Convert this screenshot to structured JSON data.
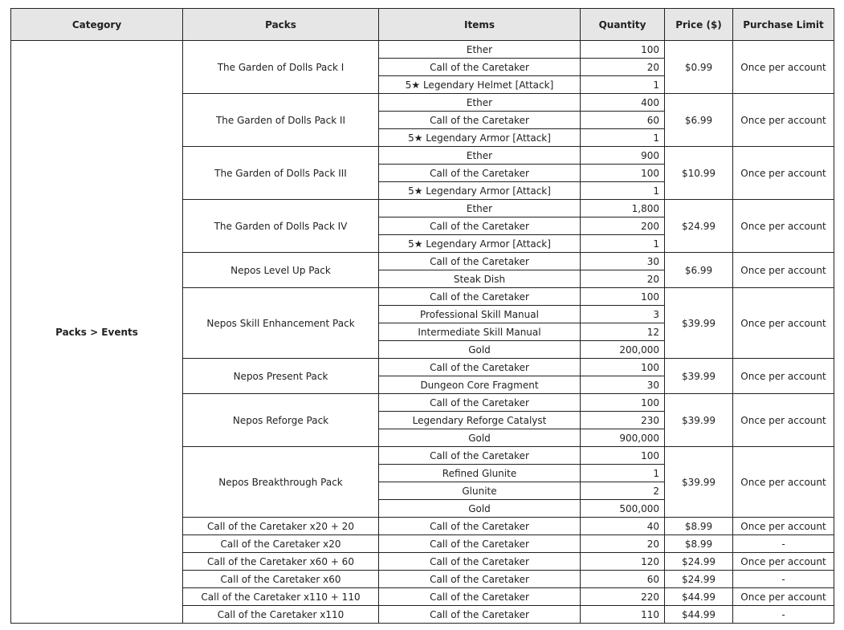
{
  "headers": [
    "Category",
    "Packs",
    "Items",
    "Quantity",
    "Price ($)",
    "Purchase Limit"
  ],
  "category": "Packs > Events",
  "packs": [
    {
      "name": "The Garden of Dolls Pack I",
      "price": "$0.99",
      "limit": "Once per account",
      "items": [
        {
          "name": "Ether",
          "qty": "100"
        },
        {
          "name": "Call of the Caretaker",
          "qty": "20"
        },
        {
          "name": "5★ Legendary Helmet [Attack]",
          "qty": "1"
        }
      ]
    },
    {
      "name": "The Garden of Dolls Pack II",
      "price": "$6.99",
      "limit": "Once per account",
      "items": [
        {
          "name": "Ether",
          "qty": "400"
        },
        {
          "name": "Call of the Caretaker",
          "qty": "60"
        },
        {
          "name": "5★ Legendary Armor [Attack]",
          "qty": "1"
        }
      ]
    },
    {
      "name": "The Garden of Dolls Pack III",
      "price": "$10.99",
      "limit": "Once per account",
      "items": [
        {
          "name": "Ether",
          "qty": "900"
        },
        {
          "name": "Call of the Caretaker",
          "qty": "100"
        },
        {
          "name": "5★ Legendary Armor [Attack]",
          "qty": "1"
        }
      ]
    },
    {
      "name": "The Garden of Dolls Pack IV",
      "price": "$24.99",
      "limit": "Once per account",
      "items": [
        {
          "name": "Ether",
          "qty": "1,800"
        },
        {
          "name": "Call of the Caretaker",
          "qty": "200"
        },
        {
          "name": "5★ Legendary Armor [Attack]",
          "qty": "1"
        }
      ]
    },
    {
      "name": "Nepos Level Up Pack",
      "price": "$6.99",
      "limit": "Once per account",
      "items": [
        {
          "name": "Call of the Caretaker",
          "qty": "30"
        },
        {
          "name": "Steak Dish",
          "qty": "20"
        }
      ]
    },
    {
      "name": "Nepos Skill Enhancement Pack",
      "price": "$39.99",
      "limit": "Once per account",
      "items": [
        {
          "name": "Call of the Caretaker",
          "qty": "100"
        },
        {
          "name": "Professional Skill Manual",
          "qty": "3"
        },
        {
          "name": "Intermediate Skill Manual",
          "qty": "12"
        },
        {
          "name": "Gold",
          "qty": "200,000"
        }
      ]
    },
    {
      "name": "Nepos Present Pack",
      "price": "$39.99",
      "limit": "Once per account",
      "items": [
        {
          "name": "Call of the Caretaker",
          "qty": "100"
        },
        {
          "name": "Dungeon Core Fragment",
          "qty": "30"
        }
      ]
    },
    {
      "name": "Nepos Reforge Pack",
      "price": "$39.99",
      "limit": "Once per account",
      "items": [
        {
          "name": "Call of the Caretaker",
          "qty": "100"
        },
        {
          "name": "Legendary Reforge Catalyst",
          "qty": "230"
        },
        {
          "name": "Gold",
          "qty": "900,000"
        }
      ]
    },
    {
      "name": "Nepos Breakthrough Pack",
      "price": "$39.99",
      "limit": "Once per account",
      "items": [
        {
          "name": "Call of the Caretaker",
          "qty": "100"
        },
        {
          "name": "Refined Glunite",
          "qty": "1"
        },
        {
          "name": "Glunite",
          "qty": "2"
        },
        {
          "name": "Gold",
          "qty": "500,000"
        }
      ]
    },
    {
      "name": "Call of the Caretaker x20 + 20",
      "price": "$8.99",
      "limit": "Once per account",
      "items": [
        {
          "name": "Call of the Caretaker",
          "qty": "40"
        }
      ]
    },
    {
      "name": "Call of the Caretaker x20",
      "price": "$8.99",
      "limit": "-",
      "items": [
        {
          "name": "Call of the Caretaker",
          "qty": "20"
        }
      ]
    },
    {
      "name": "Call of the Caretaker x60 + 60",
      "price": "$24.99",
      "limit": "Once per account",
      "items": [
        {
          "name": "Call of the Caretaker",
          "qty": "120"
        }
      ]
    },
    {
      "name": "Call of the Caretaker x60",
      "price": "$24.99",
      "limit": "-",
      "items": [
        {
          "name": "Call of the Caretaker",
          "qty": "60"
        }
      ]
    },
    {
      "name": "Call of the Caretaker x110 + 110",
      "price": "$44.99",
      "limit": "Once per account",
      "items": [
        {
          "name": "Call of the Caretaker",
          "qty": "220"
        }
      ]
    },
    {
      "name": "Call of the Caretaker x110",
      "price": "$44.99",
      "limit": "-",
      "items": [
        {
          "name": "Call of the Caretaker",
          "qty": "110"
        }
      ]
    }
  ]
}
